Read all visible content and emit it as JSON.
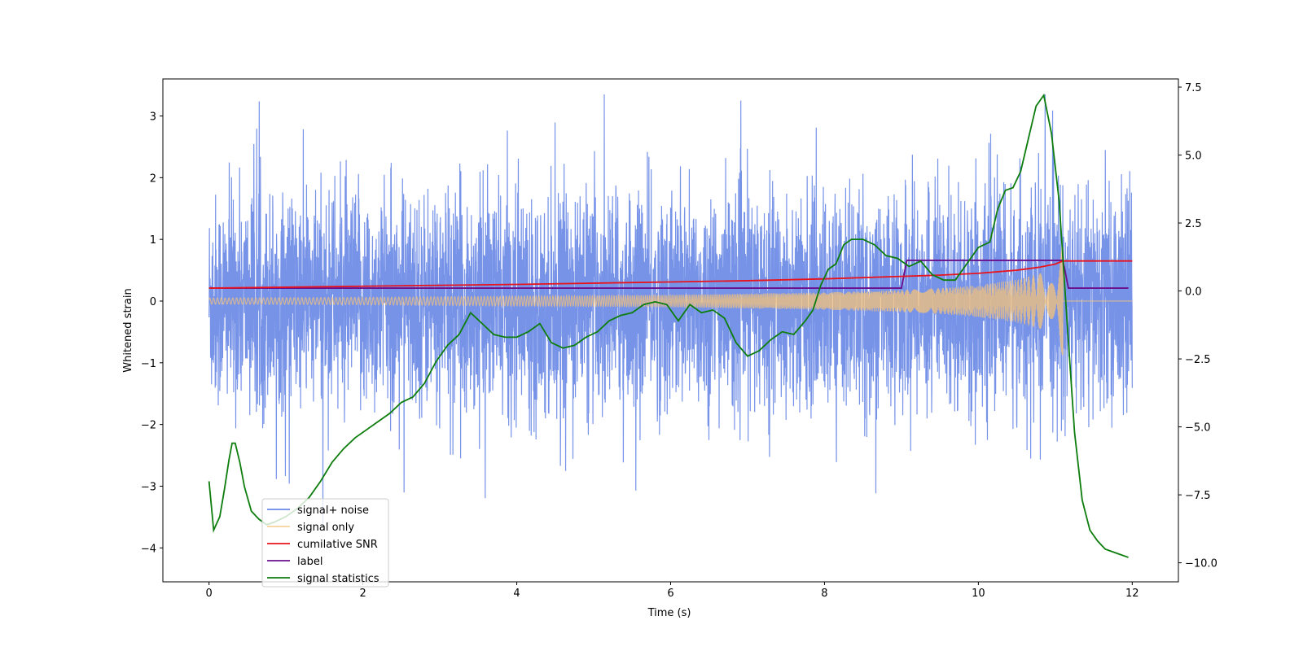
{
  "chart_data": {
    "type": "line",
    "xlabel": "Time (s)",
    "ylabel": "Whitened strain",
    "xlim": [
      -0.6,
      12.6
    ],
    "ylim": [
      -4.55,
      3.6
    ],
    "y2lim": [
      -10.7,
      7.8
    ],
    "x_ticks": [
      0,
      2,
      4,
      6,
      8,
      10,
      12
    ],
    "y_ticks": [
      3,
      2,
      1,
      0,
      -1,
      -2,
      -3,
      -4
    ],
    "y2_ticks": [
      7.5,
      5.0,
      2.5,
      0.0,
      -2.5,
      -5.0,
      -7.5,
      -10.0
    ],
    "x_tick_labels": [
      "0",
      "2",
      "4",
      "6",
      "8",
      "10",
      "12"
    ],
    "y_tick_labels": [
      "3",
      "2",
      "1",
      "0",
      "−1",
      "−2",
      "−3",
      "−4"
    ],
    "y2_tick_labels": [
      "7.5",
      "5.0",
      "2.5",
      "0.0",
      "−2.5",
      "−5.0",
      "−7.5",
      "−10.0"
    ],
    "legend_position": "lower-left",
    "series": [
      {
        "name": "signal+ noise",
        "color": "#6b8ae6",
        "axis": "left",
        "description": "dense noisy strain, roughly Gaussian, amplitude up to about +3.4 / -4.2",
        "x_range": [
          0,
          12
        ],
        "approx_envelope": [
          -2.0,
          2.0
        ]
      },
      {
        "name": "signal only",
        "color": "#f5c37a",
        "axis": "left",
        "x_range": [
          0,
          11.1
        ],
        "chirp_envelope": {
          "x": [
            0,
            2,
            4,
            6,
            7,
            8,
            9,
            9.5,
            10,
            10.5,
            10.8,
            11.0,
            11.1
          ],
          "amp": [
            0.05,
            0.06,
            0.08,
            0.1,
            0.12,
            0.14,
            0.18,
            0.21,
            0.26,
            0.35,
            0.45,
            0.65,
            0.9
          ]
        },
        "after_merger": {
          "x": [
            11.1,
            12
          ],
          "y": [
            0,
            0
          ]
        }
      },
      {
        "name": "cumilative SNR",
        "color": "#e8131c",
        "axis": "left",
        "x": [
          0,
          2,
          4,
          6,
          7,
          8,
          9,
          9.5,
          10,
          10.5,
          10.8,
          11.0,
          11.1,
          12
        ],
        "y": [
          0.21,
          0.24,
          0.27,
          0.31,
          0.33,
          0.36,
          0.4,
          0.42,
          0.45,
          0.5,
          0.55,
          0.6,
          0.65,
          0.65
        ]
      },
      {
        "name": "label",
        "color": "#6a0f8c",
        "axis": "left",
        "x": [
          0,
          9.0,
          9.07,
          11.1,
          11.17,
          11.95
        ],
        "y": [
          0.21,
          0.21,
          0.66,
          0.66,
          0.21,
          0.21
        ]
      },
      {
        "name": "signal statistics",
        "color": "#0d7d0d",
        "axis": "right",
        "x": [
          0,
          0.06,
          0.14,
          0.2,
          0.26,
          0.3,
          0.34,
          0.4,
          0.46,
          0.55,
          0.65,
          0.75,
          0.85,
          1.0,
          1.15,
          1.3,
          1.45,
          1.6,
          1.75,
          1.9,
          2.05,
          2.2,
          2.35,
          2.5,
          2.65,
          2.8,
          2.95,
          3.1,
          3.25,
          3.4,
          3.55,
          3.7,
          3.85,
          4.0,
          4.15,
          4.3,
          4.45,
          4.6,
          4.75,
          4.9,
          5.05,
          5.2,
          5.35,
          5.5,
          5.65,
          5.8,
          5.95,
          6.1,
          6.25,
          6.4,
          6.55,
          6.7,
          6.85,
          7.0,
          7.15,
          7.3,
          7.45,
          7.6,
          7.75,
          7.85,
          7.95,
          8.05,
          8.15,
          8.25,
          8.35,
          8.5,
          8.65,
          8.8,
          8.95,
          9.1,
          9.25,
          9.4,
          9.55,
          9.7,
          9.85,
          10.0,
          10.15,
          10.25,
          10.35,
          10.45,
          10.55,
          10.65,
          10.75,
          10.85,
          10.95,
          11.05,
          11.15,
          11.25,
          11.35,
          11.45,
          11.55,
          11.65,
          11.75,
          11.85,
          11.95
        ],
        "y": [
          -7.0,
          -8.8,
          -8.3,
          -7.3,
          -6.2,
          -5.6,
          -5.6,
          -6.3,
          -7.2,
          -8.1,
          -8.4,
          -8.6,
          -8.5,
          -8.3,
          -8.0,
          -7.6,
          -7.0,
          -6.3,
          -5.8,
          -5.4,
          -5.1,
          -4.8,
          -4.5,
          -4.1,
          -3.9,
          -3.4,
          -2.6,
          -2.0,
          -1.6,
          -0.8,
          -1.2,
          -1.6,
          -1.7,
          -1.7,
          -1.5,
          -1.2,
          -1.9,
          -2.1,
          -2.0,
          -1.7,
          -1.5,
          -1.1,
          -0.9,
          -0.8,
          -0.5,
          -0.4,
          -0.5,
          -1.1,
          -0.5,
          -0.8,
          -0.7,
          -1.0,
          -1.9,
          -2.4,
          -2.2,
          -1.8,
          -1.5,
          -1.6,
          -1.1,
          -0.7,
          0.2,
          0.8,
          1.0,
          1.7,
          1.9,
          1.9,
          1.7,
          1.3,
          1.2,
          0.9,
          1.1,
          0.6,
          0.4,
          0.4,
          1.0,
          1.6,
          1.8,
          3.0,
          3.7,
          3.8,
          4.4,
          5.6,
          6.8,
          7.2,
          5.8,
          3.3,
          -1.0,
          -5.2,
          -7.7,
          -8.8,
          -9.2,
          -9.5,
          -9.6,
          -9.7,
          -9.8
        ]
      }
    ]
  }
}
